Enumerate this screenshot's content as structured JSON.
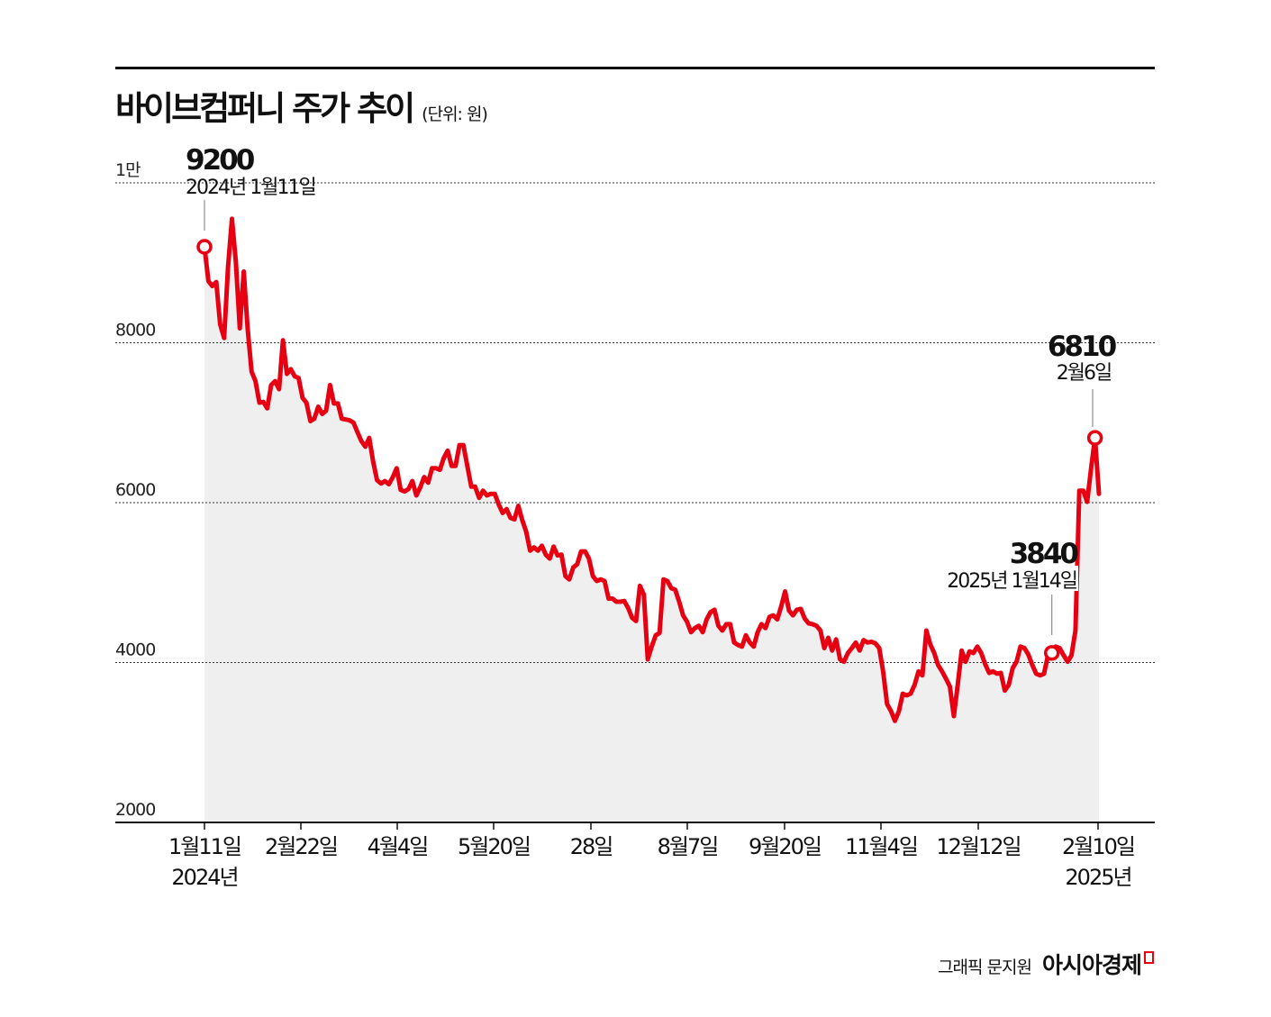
{
  "title": "바이브컴퍼니 주가 추이",
  "unit": "(단위: 원)",
  "footer": {
    "credit": "그래픽 문지원",
    "brand": "아시아경제"
  },
  "colors": {
    "line": "#e60012",
    "fill": "#efefef",
    "grid": "#333333"
  },
  "chart_data": {
    "type": "line",
    "title": "바이브컴퍼니 주가 추이",
    "unit": "(단위: 원)",
    "ylim": [
      2000,
      10000
    ],
    "yticks": [
      {
        "value": 2000,
        "label": "2000"
      },
      {
        "value": 4000,
        "label": "4000"
      },
      {
        "value": 6000,
        "label": "6000"
      },
      {
        "value": 8000,
        "label": "8000"
      },
      {
        "value": 10000,
        "label": "1만"
      }
    ],
    "grid": "horizontal dotted",
    "xticks": [
      {
        "label": "1월11일",
        "sub": "2024년"
      },
      {
        "label": "2월22일"
      },
      {
        "label": "4월4일"
      },
      {
        "label": "5월20일"
      },
      {
        "label": "28일"
      },
      {
        "label": "8월7일"
      },
      {
        "label": "9월20일"
      },
      {
        "label": "11월4일"
      },
      {
        "label": "12월12일"
      },
      {
        "label": "2월10일",
        "sub": "2025년"
      }
    ],
    "annotations": [
      {
        "value": "9200",
        "date": "2024년 1월11일"
      },
      {
        "value": "3840",
        "date": "2025년 1월14일"
      },
      {
        "value": "6810",
        "date": "2월6일"
      }
    ],
    "values": [
      9200,
      8770,
      8710,
      8760,
      8230,
      8060,
      8940,
      9550,
      9020,
      8180,
      8890,
      8180,
      7640,
      7520,
      7250,
      7260,
      7180,
      7470,
      7520,
      7420,
      8030,
      7610,
      7670,
      7580,
      7560,
      7310,
      7250,
      7020,
      7050,
      7200,
      7110,
      7150,
      7470,
      7240,
      7240,
      7050,
      7040,
      7030,
      7000,
      6880,
      6770,
      6700,
      6810,
      6510,
      6280,
      6240,
      6270,
      6230,
      6320,
      6430,
      6160,
      6140,
      6170,
      6270,
      6090,
      6190,
      6320,
      6250,
      6430,
      6430,
      6410,
      6560,
      6650,
      6460,
      6460,
      6720,
      6720,
      6460,
      6200,
      6200,
      6060,
      6150,
      6090,
      6110,
      6110,
      5980,
      5870,
      5920,
      5810,
      5790,
      5960,
      5780,
      5640,
      5400,
      5440,
      5400,
      5460,
      5350,
      5300,
      5450,
      5340,
      5350,
      5080,
      5040,
      5190,
      5230,
      5390,
      5390,
      5300,
      5080,
      5020,
      5040,
      5020,
      4800,
      4800,
      4760,
      4760,
      4770,
      4680,
      4560,
      4520,
      4960,
      4850,
      4040,
      4200,
      4340,
      4370,
      5040,
      5020,
      4930,
      4910,
      4760,
      4590,
      4510,
      4380,
      4430,
      4460,
      4380,
      4540,
      4630,
      4660,
      4460,
      4400,
      4480,
      4480,
      4250,
      4220,
      4200,
      4340,
      4250,
      4200,
      4380,
      4480,
      4430,
      4570,
      4590,
      4540,
      4700,
      4890,
      4650,
      4590,
      4660,
      4670,
      4550,
      4490,
      4480,
      4460,
      4400,
      4180,
      4310,
      4150,
      4290,
      4040,
      4010,
      4120,
      4180,
      4250,
      4150,
      4280,
      4250,
      4260,
      4240,
      4180,
      3880,
      3480,
      3390,
      3270,
      3390,
      3610,
      3590,
      3610,
      3720,
      3890,
      3840,
      4400,
      4230,
      4120,
      3970,
      3890,
      3800,
      3700,
      3330,
      3720,
      4150,
      4010,
      4140,
      4120,
      4200,
      4120,
      3980,
      3870,
      3890,
      3860,
      3870,
      3650,
      3720,
      3930,
      4010,
      4200,
      4180,
      4100,
      3970,
      3860,
      3840,
      3860,
      4090,
      4120,
      4200,
      4180,
      4090,
      4010,
      4090,
      4400,
      6150,
      6150,
      6010,
      6430,
      6810,
      6110
    ]
  }
}
